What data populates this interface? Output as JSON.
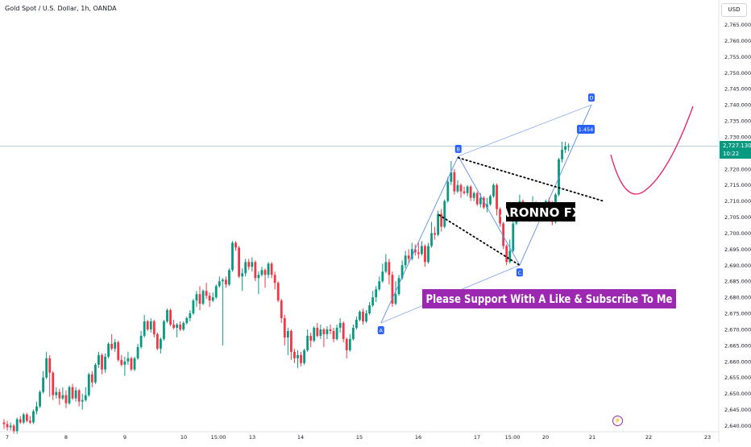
{
  "header": {
    "symbol": "Gold Spot / U.S. Dollar, 1h, OANDA"
  },
  "currency_button": "USD",
  "last_price": {
    "value": "2,727.130",
    "countdown": "10:22",
    "color": "#089981"
  },
  "colors": {
    "up": "#089981",
    "down": "#f23645",
    "pattern_line": "#5b8def",
    "point_label_bg": "#2962ff",
    "projection": "#e91e63",
    "price_line": "#9ec5d8",
    "banner_bg": "#9c27b0",
    "watermark_bg": "#000000"
  },
  "chart_data": {
    "type": "candlestick",
    "y_axis": {
      "ylim": [
        2637,
        2770
      ],
      "ticks": [
        "2,765.000",
        "2,760.000",
        "2,755.000",
        "2,750.000",
        "2,745.000",
        "2,740.000",
        "2,735.000",
        "2,730.000",
        "2,725.000",
        "2,720.000",
        "2,715.000",
        "2,710.000",
        "2,705.000",
        "2,700.000",
        "2,695.000",
        "2,690.000",
        "2,685.000",
        "2,680.000",
        "2,675.000",
        "2,670.000",
        "2,665.000",
        "2,660.000",
        "2,655.000",
        "2,650.000",
        "2,645.000",
        "2,640.000"
      ]
    },
    "x_axis": {
      "ticks": [
        "7",
        "8",
        "9",
        "10",
        "15:00",
        "13",
        "14",
        "15",
        "16",
        "17",
        "15:00",
        "20",
        "21",
        "22",
        "23"
      ]
    },
    "price_line": 2727.13,
    "candles": [
      [
        2641.0,
        2640.5,
        2642.0,
        2639.0
      ],
      [
        2640.5,
        2639.5,
        2641.5,
        2638.5
      ],
      [
        2639.5,
        2640.0,
        2641.0,
        2638.5
      ],
      [
        2640.0,
        2638.0,
        2640.5,
        2637.5
      ],
      [
        2638.0,
        2642.0,
        2642.5,
        2637.5
      ],
      [
        2642.0,
        2641.0,
        2643.0,
        2640.5
      ],
      [
        2641.0,
        2643.5,
        2644.0,
        2640.5
      ],
      [
        2643.5,
        2641.5,
        2644.0,
        2641.0
      ],
      [
        2641.5,
        2641.0,
        2643.0,
        2640.5
      ],
      [
        2641.0,
        2644.5,
        2645.0,
        2640.5
      ],
      [
        2644.5,
        2646.0,
        2647.5,
        2643.5
      ],
      [
        2646.0,
        2650.5,
        2651.0,
        2645.5
      ],
      [
        2650.5,
        2655.0,
        2657.0,
        2650.0
      ],
      [
        2655.0,
        2661.0,
        2663.0,
        2654.5
      ],
      [
        2661.0,
        2656.5,
        2662.0,
        2649.0
      ],
      [
        2656.5,
        2649.5,
        2657.0,
        2648.0
      ],
      [
        2649.5,
        2650.5,
        2652.0,
        2648.5
      ],
      [
        2650.5,
        2648.5,
        2651.5,
        2646.5
      ],
      [
        2648.5,
        2649.5,
        2652.0,
        2648.0
      ],
      [
        2649.5,
        2647.0,
        2651.0,
        2645.5
      ],
      [
        2647.0,
        2652.0,
        2652.5,
        2646.5
      ],
      [
        2652.0,
        2648.5,
        2653.0,
        2648.0
      ],
      [
        2648.5,
        2651.0,
        2652.0,
        2647.5
      ],
      [
        2651.0,
        2647.5,
        2651.5,
        2646.0
      ],
      [
        2647.5,
        2648.0,
        2650.0,
        2645.0
      ],
      [
        2648.0,
        2649.5,
        2652.0,
        2647.5
      ],
      [
        2649.5,
        2656.0,
        2656.5,
        2649.0
      ],
      [
        2656.0,
        2653.5,
        2657.0,
        2652.0
      ],
      [
        2653.5,
        2659.0,
        2659.5,
        2653.0
      ],
      [
        2659.0,
        2662.0,
        2663.0,
        2658.0
      ],
      [
        2662.0,
        2657.5,
        2662.5,
        2656.0
      ],
      [
        2657.5,
        2661.5,
        2662.5,
        2656.5
      ],
      [
        2661.5,
        2665.5,
        2666.0,
        2661.0
      ],
      [
        2665.5,
        2664.0,
        2668.5,
        2663.5
      ],
      [
        2664.0,
        2666.0,
        2667.0,
        2663.0
      ],
      [
        2666.0,
        2660.5,
        2666.5,
        2660.0
      ],
      [
        2660.5,
        2659.0,
        2662.0,
        2658.5
      ],
      [
        2659.0,
        2660.0,
        2661.5,
        2655.5
      ],
      [
        2660.0,
        2661.0,
        2663.0,
        2659.0
      ],
      [
        2661.0,
        2657.5,
        2661.5,
        2657.0
      ],
      [
        2657.5,
        2661.0,
        2661.5,
        2657.0
      ],
      [
        2661.0,
        2664.5,
        2665.5,
        2660.5
      ],
      [
        2664.5,
        2668.0,
        2669.5,
        2664.0
      ],
      [
        2668.0,
        2672.5,
        2674.5,
        2667.5
      ],
      [
        2672.5,
        2670.0,
        2673.0,
        2669.5
      ],
      [
        2670.0,
        2672.5,
        2673.5,
        2669.0
      ],
      [
        2672.5,
        2668.5,
        2673.0,
        2667.5
      ],
      [
        2668.5,
        2664.0,
        2669.0,
        2663.5
      ],
      [
        2664.0,
        2667.0,
        2667.5,
        2662.5
      ],
      [
        2667.0,
        2672.5,
        2673.0,
        2666.5
      ],
      [
        2672.5,
        2676.0,
        2676.5,
        2672.0
      ],
      [
        2676.0,
        2671.5,
        2676.5,
        2671.0
      ],
      [
        2671.5,
        2670.5,
        2673.0,
        2670.0
      ],
      [
        2670.5,
        2671.5,
        2672.0,
        2667.5
      ],
      [
        2671.5,
        2670.0,
        2672.5,
        2669.5
      ],
      [
        2670.0,
        2672.0,
        2672.5,
        2669.5
      ],
      [
        2672.0,
        2673.5,
        2674.0,
        2671.5
      ],
      [
        2673.5,
        2675.0,
        2676.0,
        2672.5
      ],
      [
        2675.0,
        2679.0,
        2679.5,
        2674.5
      ],
      [
        2679.0,
        2681.0,
        2682.0,
        2677.0
      ],
      [
        2681.0,
        2678.0,
        2683.5,
        2676.0
      ],
      [
        2678.0,
        2682.0,
        2682.5,
        2677.5
      ],
      [
        2682.0,
        2680.5,
        2684.5,
        2679.5
      ],
      [
        2680.5,
        2679.0,
        2681.5,
        2677.0
      ],
      [
        2679.0,
        2680.0,
        2681.5,
        2678.5
      ],
      [
        2680.0,
        2683.5,
        2684.0,
        2679.5
      ],
      [
        2683.5,
        2685.0,
        2686.5,
        2683.0
      ],
      [
        2685.0,
        2685.5,
        2686.0,
        2665.0
      ],
      [
        2685.5,
        2684.0,
        2686.5,
        2683.0
      ],
      [
        2684.0,
        2688.5,
        2689.0,
        2683.5
      ],
      [
        2688.5,
        2697.0,
        2697.5,
        2688.0
      ],
      [
        2697.0,
        2695.5,
        2697.5,
        2694.5
      ],
      [
        2695.5,
        2686.5,
        2696.0,
        2686.0
      ],
      [
        2686.5,
        2687.5,
        2689.0,
        2682.0
      ],
      [
        2687.5,
        2691.0,
        2692.0,
        2686.5
      ],
      [
        2691.0,
        2689.5,
        2692.0,
        2688.5
      ],
      [
        2689.5,
        2691.0,
        2692.5,
        2688.0
      ],
      [
        2691.0,
        2686.0,
        2691.5,
        2685.0
      ],
      [
        2686.0,
        2687.0,
        2688.0,
        2681.0
      ],
      [
        2687.0,
        2688.5,
        2689.5,
        2686.5
      ],
      [
        2688.5,
        2687.0,
        2689.0,
        2683.0
      ],
      [
        2687.0,
        2690.5,
        2691.0,
        2686.0
      ],
      [
        2690.5,
        2687.0,
        2691.0,
        2686.0
      ],
      [
        2687.0,
        2684.5,
        2688.0,
        2682.5
      ],
      [
        2684.5,
        2679.0,
        2685.0,
        2678.5
      ],
      [
        2679.0,
        2673.5,
        2679.5,
        2672.0
      ],
      [
        2673.5,
        2667.5,
        2674.5,
        2665.0
      ],
      [
        2667.5,
        2669.5,
        2670.5,
        2662.0
      ],
      [
        2669.5,
        2663.0,
        2670.0,
        2660.5
      ],
      [
        2663.0,
        2661.0,
        2664.0,
        2659.5
      ],
      [
        2661.0,
        2662.0,
        2663.5,
        2658.0
      ],
      [
        2662.0,
        2659.5,
        2663.0,
        2658.5
      ],
      [
        2659.5,
        2663.5,
        2664.0,
        2659.0
      ],
      [
        2663.5,
        2668.0,
        2670.0,
        2663.0
      ],
      [
        2668.0,
        2666.5,
        2669.0,
        2664.5
      ],
      [
        2666.5,
        2670.5,
        2671.0,
        2666.0
      ],
      [
        2670.5,
        2668.0,
        2672.0,
        2667.5
      ],
      [
        2668.0,
        2670.0,
        2671.5,
        2667.0
      ],
      [
        2670.0,
        2668.5,
        2670.5,
        2664.5
      ],
      [
        2668.5,
        2670.0,
        2671.0,
        2667.0
      ],
      [
        2670.0,
        2669.5,
        2671.5,
        2668.5
      ],
      [
        2669.5,
        2667.0,
        2670.5,
        2666.0
      ],
      [
        2667.0,
        2670.5,
        2671.5,
        2666.5
      ],
      [
        2670.5,
        2672.0,
        2673.5,
        2669.0
      ],
      [
        2672.0,
        2667.0,
        2672.5,
        2666.0
      ],
      [
        2667.0,
        2663.5,
        2667.5,
        2661.0
      ],
      [
        2663.5,
        2667.0,
        2668.5,
        2663.0
      ],
      [
        2667.0,
        2670.5,
        2671.5,
        2666.5
      ],
      [
        2670.5,
        2673.0,
        2674.0,
        2670.0
      ],
      [
        2673.0,
        2675.5,
        2676.0,
        2672.5
      ],
      [
        2675.5,
        2672.5,
        2676.5,
        2671.5
      ],
      [
        2672.5,
        2675.0,
        2676.0,
        2672.0
      ],
      [
        2675.0,
        2677.5,
        2678.5,
        2674.5
      ],
      [
        2677.5,
        2680.0,
        2682.0,
        2677.0
      ],
      [
        2680.0,
        2682.5,
        2683.5,
        2678.5
      ],
      [
        2682.5,
        2685.0,
        2686.5,
        2682.0
      ],
      [
        2685.0,
        2688.0,
        2690.5,
        2684.5
      ],
      [
        2688.0,
        2691.0,
        2693.5,
        2687.5
      ],
      [
        2691.0,
        2687.0,
        2692.0,
        2684.0
      ],
      [
        2687.0,
        2678.0,
        2688.0,
        2677.0
      ],
      [
        2678.0,
        2681.0,
        2685.0,
        2677.5
      ],
      [
        2681.0,
        2686.0,
        2687.0,
        2680.5
      ],
      [
        2686.0,
        2690.0,
        2691.5,
        2685.5
      ],
      [
        2690.0,
        2693.0,
        2694.5,
        2689.0
      ],
      [
        2693.0,
        2692.0,
        2695.0,
        2690.5
      ],
      [
        2692.0,
        2695.0,
        2697.0,
        2691.5
      ],
      [
        2695.0,
        2694.0,
        2696.5,
        2693.0
      ],
      [
        2694.0,
        2693.5,
        2697.0,
        2692.0
      ],
      [
        2693.5,
        2696.0,
        2697.5,
        2693.0
      ],
      [
        2696.0,
        2691.0,
        2696.5,
        2689.5
      ],
      [
        2691.0,
        2696.0,
        2697.0,
        2690.5
      ],
      [
        2696.0,
        2700.0,
        2703.5,
        2695.5
      ],
      [
        2700.0,
        2699.5,
        2702.0,
        2698.0
      ],
      [
        2699.5,
        2706.0,
        2707.0,
        2699.0
      ],
      [
        2706.0,
        2702.0,
        2707.5,
        2700.5
      ],
      [
        2702.0,
        2710.0,
        2710.5,
        2701.5
      ],
      [
        2710.0,
        2716.0,
        2717.5,
        2709.5
      ],
      [
        2716.0,
        2719.0,
        2722.5,
        2715.0
      ],
      [
        2719.0,
        2713.0,
        2720.0,
        2712.0
      ],
      [
        2713.0,
        2715.0,
        2716.5,
        2712.5
      ],
      [
        2715.0,
        2713.0,
        2715.5,
        2711.0
      ],
      [
        2713.0,
        2712.5,
        2714.5,
        2712.0
      ],
      [
        2712.5,
        2714.5,
        2715.0,
        2711.5
      ],
      [
        2714.5,
        2711.0,
        2715.0,
        2710.0
      ],
      [
        2711.0,
        2712.5,
        2713.0,
        2710.0
      ],
      [
        2712.5,
        2709.0,
        2713.0,
        2708.5
      ],
      [
        2709.0,
        2711.0,
        2712.5,
        2708.0
      ],
      [
        2711.0,
        2708.0,
        2711.5,
        2707.5
      ],
      [
        2708.0,
        2709.0,
        2711.0,
        2706.5
      ],
      [
        2709.0,
        2711.5,
        2712.0,
        2708.5
      ],
      [
        2711.5,
        2715.0,
        2715.5,
        2711.0
      ],
      [
        2715.0,
        2707.5,
        2715.5,
        2705.5
      ],
      [
        2707.5,
        2703.0,
        2708.0,
        2702.0
      ],
      [
        2703.0,
        2696.0,
        2703.5,
        2695.0
      ],
      [
        2696.0,
        2691.0,
        2696.5,
        2690.0
      ],
      [
        2691.0,
        2694.5,
        2698.0,
        2690.5
      ],
      [
        2694.5,
        2703.0,
        2704.0,
        2694.0
      ],
      [
        2703.0,
        2706.5,
        2707.0,
        2702.5
      ],
      [
        2706.5,
        2710.0,
        2712.0,
        2706.0
      ],
      [
        2710.0,
        2705.5,
        2710.5,
        2704.0
      ],
      [
        2705.5,
        2707.0,
        2708.5,
        2705.0
      ],
      [
        2707.0,
        2704.5,
        2707.5,
        2703.5
      ],
      [
        2704.5,
        2709.5,
        2711.5,
        2704.0
      ],
      [
        2709.5,
        2705.0,
        2710.0,
        2704.5
      ],
      [
        2705.0,
        2707.5,
        2709.5,
        2704.5
      ],
      [
        2707.5,
        2705.5,
        2708.5,
        2705.0
      ],
      [
        2705.5,
        2710.0,
        2710.5,
        2705.0
      ],
      [
        2710.0,
        2708.0,
        2711.0,
        2704.0
      ],
      [
        2708.0,
        2703.5,
        2710.0,
        2702.5
      ],
      [
        2703.5,
        2712.0,
        2712.5,
        2703.0
      ],
      [
        2712.0,
        2723.0,
        2723.5,
        2711.5
      ],
      [
        2723.0,
        2726.0,
        2728.5,
        2722.0
      ],
      [
        2726.0,
        2727.0,
        2728.5,
        2725.0
      ],
      [
        2727.0,
        2727.13,
        2728.0,
        2725.5
      ]
    ],
    "pattern": {
      "points": [
        {
          "label": "A",
          "x": 115.5,
          "y": 2672
        },
        {
          "label": "B",
          "x": 139.2,
          "y": 2724
        },
        {
          "label": "C",
          "x": 158.0,
          "y": 2690
        },
        {
          "label": "D",
          "x": 180.0,
          "y": 2740
        }
      ],
      "ratio_label": "1.454"
    },
    "annotations": {
      "watermark": "ARONNO FX",
      "banner": "Please Support With A Like & Subscribe To Me"
    }
  }
}
